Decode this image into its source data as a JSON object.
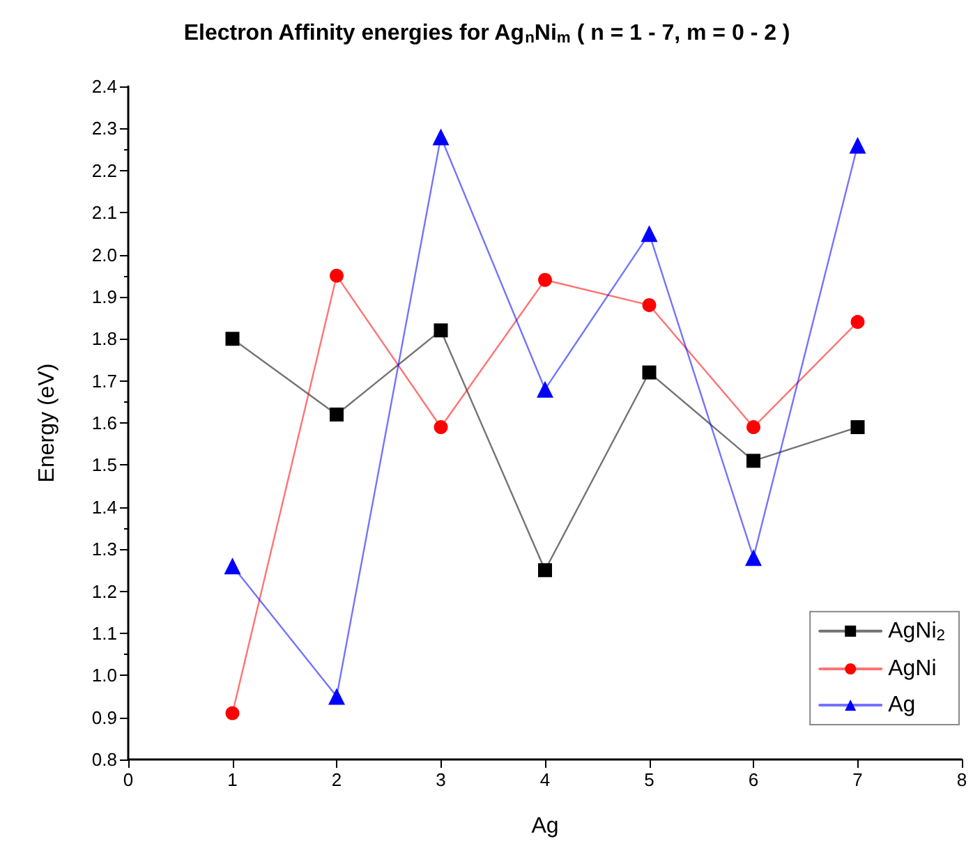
{
  "chart_data": {
    "type": "line",
    "title": "Electron Affinity energies for Ag$_{n}$Ni$_{m}$ ( n = 1 - 7, m = 0 - 2 )",
    "xlabel": "Ag",
    "ylabel": "Energy (eV)",
    "x": [
      1,
      2,
      3,
      4,
      5,
      6,
      7
    ],
    "series": [
      {
        "name": "AgNi$_{2}$",
        "color": "#000000",
        "marker": "square",
        "values": [
          1.8,
          1.62,
          1.82,
          1.25,
          1.72,
          1.51,
          1.59
        ]
      },
      {
        "name": "AgNi",
        "color": "#ff0000",
        "marker": "circle",
        "values": [
          0.91,
          1.95,
          1.59,
          1.94,
          1.88,
          1.59,
          1.84
        ]
      },
      {
        "name": "Ag",
        "color": "#0000ff",
        "marker": "triangle",
        "values": [
          1.26,
          0.95,
          2.28,
          1.68,
          2.05,
          1.28,
          2.26
        ]
      }
    ],
    "xlim": [
      0,
      8
    ],
    "xticks": [
      0,
      1,
      2,
      3,
      4,
      5,
      6,
      7,
      8
    ],
    "ylim": [
      0.8,
      2.4
    ],
    "yticks": [
      {
        "value": 0.8,
        "label": "0.8"
      },
      {
        "value": 0.9,
        "label": "0.9"
      },
      {
        "value": 1.0,
        "label": "1.0"
      },
      {
        "value": 1.1,
        "label": "1.1"
      },
      {
        "value": 1.2,
        "label": "1.2"
      },
      {
        "value": 1.3,
        "label": "1.3"
      },
      {
        "value": 1.4,
        "label": "1.4"
      },
      {
        "value": 1.5,
        "label": "1.5"
      },
      {
        "value": 1.6,
        "label": "1.6"
      },
      {
        "value": 1.7,
        "label": "1.7"
      },
      {
        "value": 1.8,
        "label": "1.8"
      },
      {
        "value": 1.9,
        "label": "1.9"
      },
      {
        "value": 2.0,
        "label": "2.0"
      },
      {
        "value": 2.1,
        "label": "2.1"
      },
      {
        "value": 2.2,
        "label": "2.2"
      },
      {
        "value": 2.3,
        "label": "2.3"
      },
      {
        "value": 2.4,
        "label": "2.4"
      }
    ],
    "grid": false,
    "legend": "bottom right",
    "line_style": "solid"
  }
}
